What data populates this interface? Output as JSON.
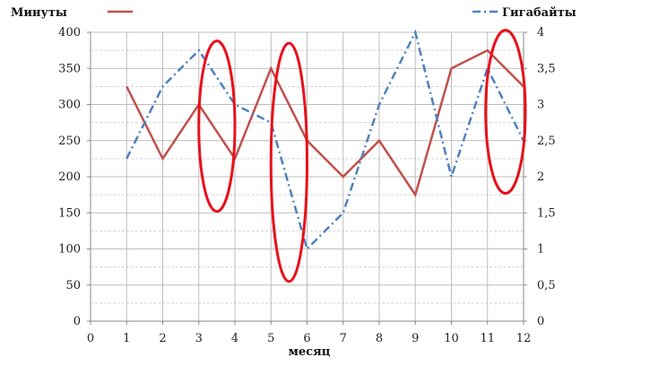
{
  "chart_data": {
    "type": "line",
    "xlabel": "месяц",
    "x_ticks": [
      0,
      1,
      2,
      3,
      4,
      5,
      6,
      7,
      8,
      9,
      10,
      11,
      12
    ],
    "x_range": [
      0,
      12
    ],
    "y_left_range": [
      0,
      400
    ],
    "y_left_ticks": [
      "0",
      "50",
      "100",
      "150",
      "200",
      "250",
      "300",
      "350",
      "400"
    ],
    "y_right_range": [
      0,
      4
    ],
    "y_right_ticks": [
      "0",
      "0,5",
      "1",
      "1,5",
      "2",
      "2,5",
      "3",
      "3,5",
      "4"
    ],
    "grid": true,
    "legend_placement": "top",
    "series": [
      {
        "name": "Минуты",
        "axis": "left",
        "color": "#c0504d",
        "style": "solid",
        "x": [
          1,
          2,
          3,
          4,
          5,
          6,
          7,
          8,
          9,
          10,
          11,
          12
        ],
        "values": [
          325,
          225,
          300,
          225,
          350,
          250,
          200,
          250,
          175,
          350,
          375,
          325
        ]
      },
      {
        "name": "Гигабайты",
        "axis": "right",
        "color": "#4f81bd",
        "style": "dash-dot",
        "x": [
          1,
          2,
          3,
          4,
          5,
          6,
          7,
          8,
          9,
          10,
          11,
          12
        ],
        "values": [
          2.25,
          3.25,
          3.75,
          3,
          2.75,
          1,
          1.5,
          3,
          4,
          2,
          3.5,
          2.5
        ]
      }
    ],
    "annotations": [
      {
        "type": "ellipse",
        "color": "#e8101a",
        "cx": 3.5,
        "cy": 270,
        "rx": 0.5,
        "ry": 118
      },
      {
        "type": "ellipse",
        "color": "#e8101a",
        "cx": 5.5,
        "cy": 220,
        "rx": 0.5,
        "ry": 165
      },
      {
        "type": "ellipse",
        "color": "#e8101a",
        "cx": 11.5,
        "cy": 290,
        "rx": 0.55,
        "ry": 113
      }
    ]
  }
}
